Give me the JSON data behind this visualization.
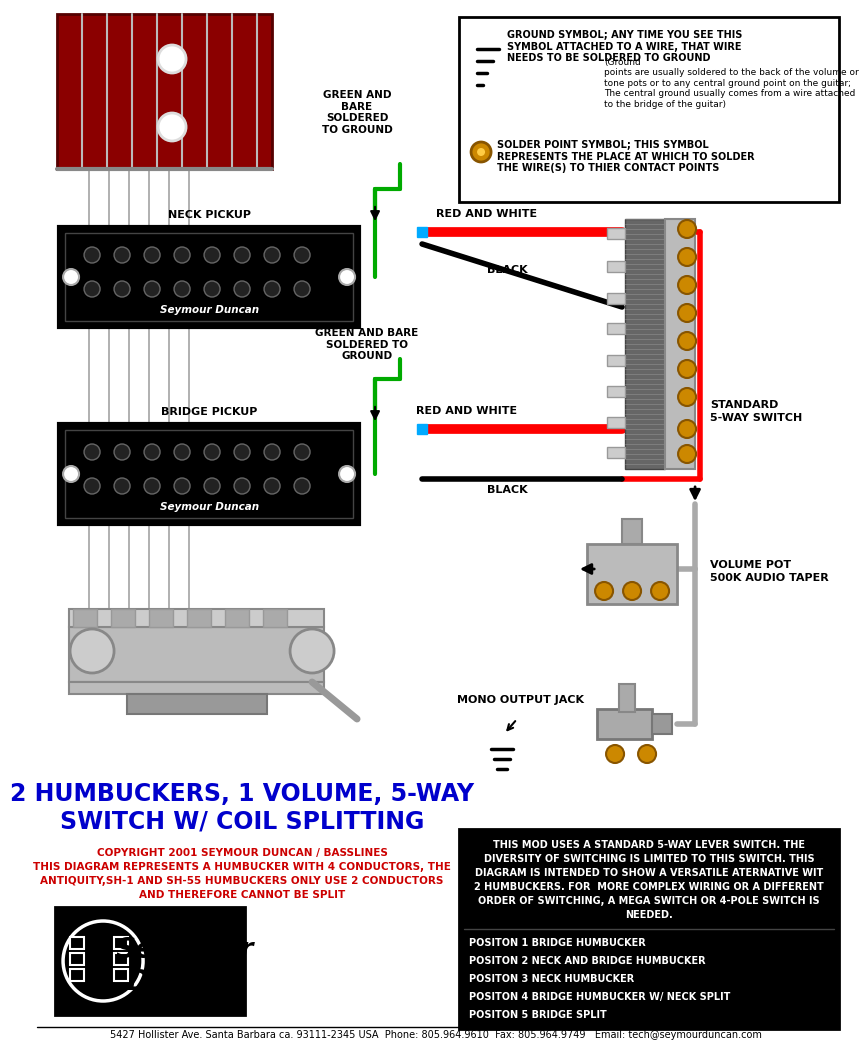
{
  "bg_color": "#ffffff",
  "title_line1": "2 HUMBUCKERS, 1 VOLUME, 5-WAY",
  "title_line2": "SWITCH W/ COIL SPLITTING",
  "copyright": "COPYRIGHT 2001 SEYMOUR DUNCAN / BASSLINES",
  "disclaimer1": "THIS DIAGRAM REPRESENTS A HUMBUCKER WITH 4 CONDUCTORS, THE",
  "disclaimer2": "ANTIQUITY,SH-1 AND SH-55 HUMBUCKERS ONLY USE 2 CONDUCTORS",
  "disclaimer3": "AND THEREFORE CANNOT BE SPLIT",
  "footer": "5427 Hollister Ave. Santa Barbara ca. 93111-2345 USA  Phone: 805.964.9610  Fax: 805.964.9749   Email: tech@seymourduncan.com",
  "ground_title_bold": "GROUND SYMBOL; ANY TIME YOU SEE THIS\nSYMBOL ATTACHED TO A WIRE, THAT WIRE\nNEEDS TO BE SOLDERED TO GROUND",
  "ground_detail": "(Ground\npoints are usually soldered to the back of the volume or\ntone pots or to any central ground point on the guitar;\nThe central ground usually comes from a wire attached\nto the bridge of the guitar)",
  "solder_title": "SOLDER POINT SYMBOL; THIS SYMBOL\nREPRESENTS THE PLACE AT WHICH TO SOLDER\nTHE WIRE(S) TO THIER CONTACT POINTS",
  "box_text_lines": [
    "THIS MOD USES A STANDARD 5-WAY LEVER SWITCH. THE",
    "DIVERSITY OF SWITCHING IS LIMITED TO THIS SWITCH. THIS",
    "DIAGRAM IS INTENDED TO SHOW A VERSATILE ATERNATIVE WIT",
    "2 HUMBUCKERS. FOR  MORE COMPLEX WIRING OR A DIFFERENT",
    "ORDER OF SWITCHING, A MEGA SWITCH OR 4-POLE SWITCH IS",
    "NEEDED."
  ],
  "positions": [
    "POSITON 1 BRIDGE HUMBUCKER",
    "POSITON 2 NECK AND BRIDGE HUMBUCKER",
    "POSITON 3 NECK HUMBUCKER",
    "POSITON 4 BRIDGE HUMBUCKER W/ NECK SPLIT",
    "POSITON 5 BRIDGE SPLIT"
  ],
  "neck_label": "NECK PICKUP",
  "bridge_label": "BRIDGE PICKUP",
  "green_bare_label1": "GREEN AND\nBARE\nSOLDERED\nTO GROUND",
  "green_bare_label2": "GREEN AND BARE\nSOLDERED TO\nGROUND",
  "red_white_label1": "RED AND WHITE",
  "red_white_label2": "RED AND WHITE",
  "black_label1": "BLACK",
  "black_label2": "BLACK",
  "switch_label_line1": "STANDARD",
  "switch_label_line2": "5-WAY SWITCH",
  "volume_label_line1": "VOLUME POT",
  "volume_label_line2": "500K AUDIO TAPER",
  "jack_label": "MONO OUTPUT JACK",
  "title_color": "#0000cc",
  "copyright_color": "#cc0000",
  "disclaimer_color": "#cc0000",
  "wire_red": "#ff0000",
  "wire_green": "#00aa00",
  "wire_black": "#000000",
  "wire_gray": "#aaaaaa",
  "wire_cyan": "#00aaff",
  "gold": "#cc8800",
  "gold_dark": "#885500"
}
